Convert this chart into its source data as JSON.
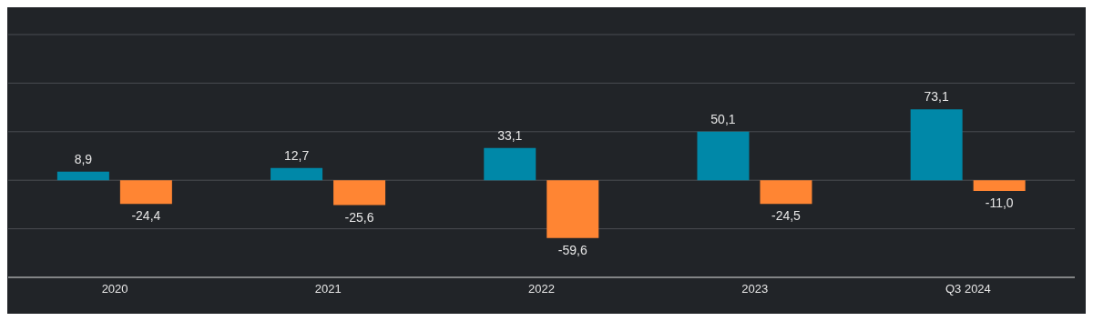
{
  "chart_data": {
    "type": "bar",
    "categories": [
      "2020",
      "2021",
      "2022",
      "2023",
      "Q3 2024"
    ],
    "series": [
      {
        "color": "#0088a8",
        "values": [
          8.9,
          12.7,
          33.1,
          50.1,
          73.1
        ],
        "value_labels": [
          "8,9",
          "12,7",
          "33,1",
          "50,1",
          "73,1"
        ]
      },
      {
        "color": "#ff8533",
        "values": [
          -24.4,
          -25.6,
          -59.6,
          -24.5,
          -11.0
        ],
        "value_labels": [
          "-24,4",
          "-25,6",
          "-59,6",
          "-24,5",
          "-11,0"
        ]
      }
    ],
    "ylim": [
      -100,
      150
    ],
    "grid": "y",
    "tick_labels": "x"
  }
}
